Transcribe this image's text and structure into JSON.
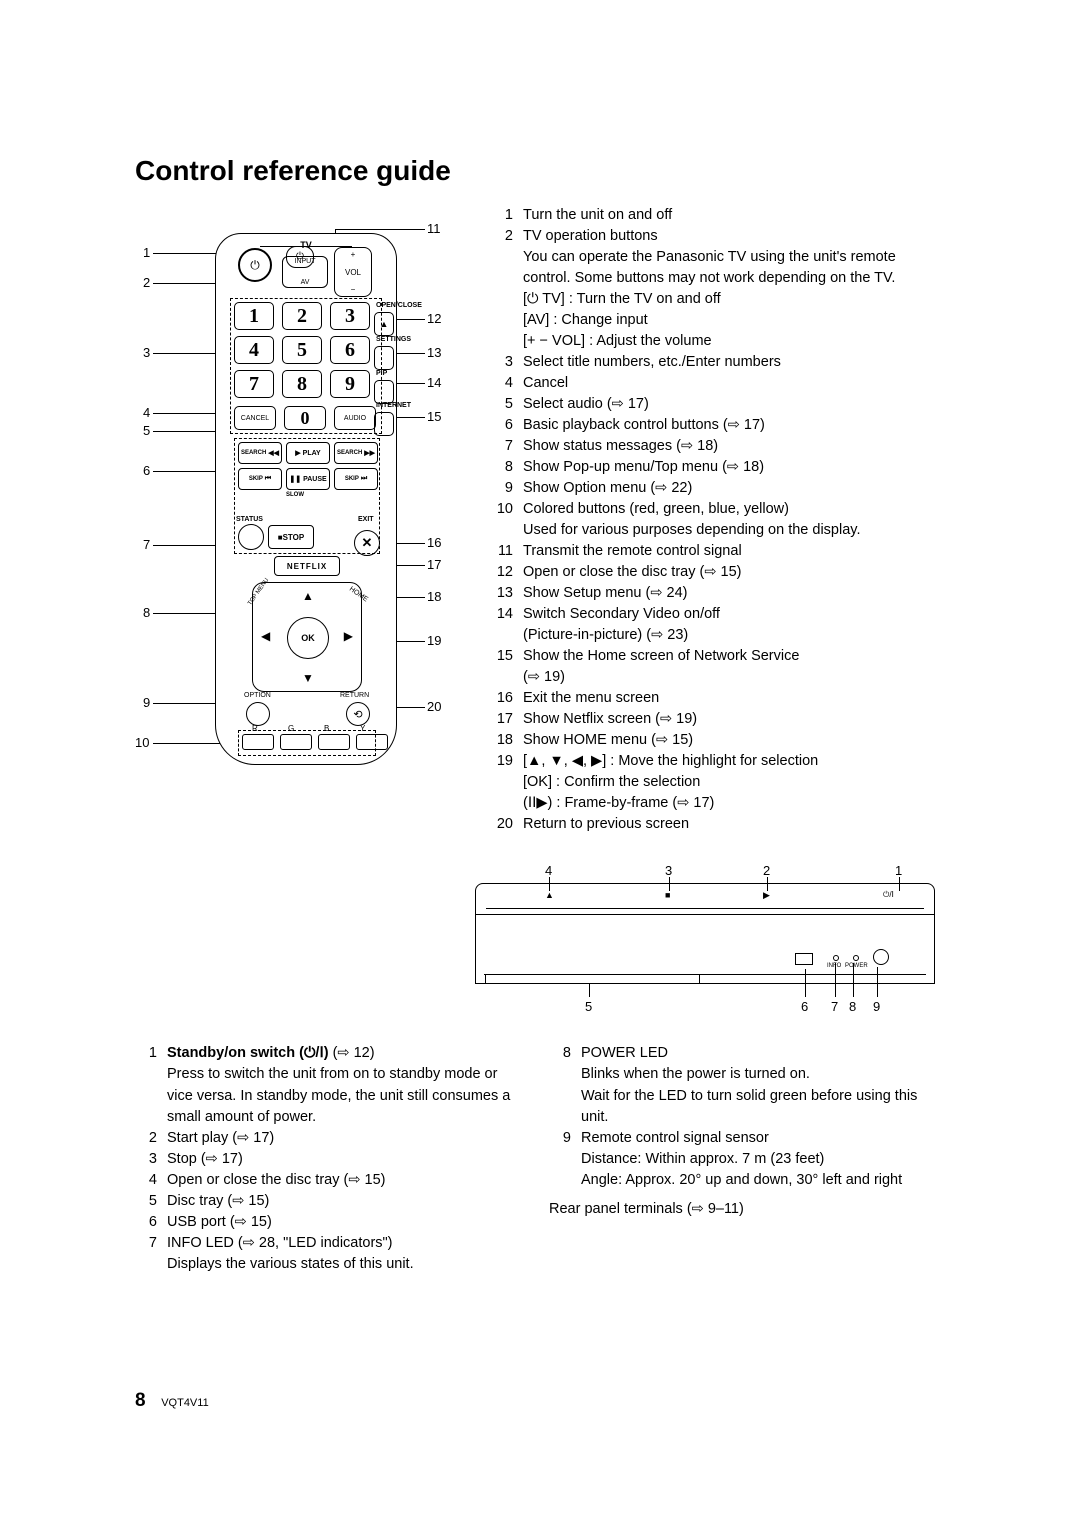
{
  "title": "Control reference guide",
  "page_number": "8",
  "doc_code": "VQT4V11",
  "remote_callouts_left": [
    "1",
    "2",
    "3",
    "4",
    "5",
    "6",
    "7",
    "8",
    "9",
    "10"
  ],
  "remote_callouts_right": [
    "11",
    "12",
    "13",
    "14",
    "15",
    "16",
    "17",
    "18",
    "19",
    "20"
  ],
  "remote": {
    "tv": "TV",
    "input": "INPUT",
    "av": "AV",
    "vol": "VOL",
    "nums": [
      "1",
      "2",
      "3",
      "4",
      "5",
      "6",
      "7",
      "8",
      "9"
    ],
    "num0": "0",
    "cancel": "CANCEL",
    "audio": "AUDIO",
    "open_close": "OPEN/CLOSE",
    "settings": "SETTINGS",
    "pip": "PIP",
    "internet": "INTERNET",
    "search": "SEARCH",
    "play": "PLAY",
    "skip": "SKIP",
    "slow": "SLOW",
    "pause": "PAUSE",
    "stop": "STOP",
    "status": "STATUS",
    "exit": "EXIT",
    "netflix": "NETFLIX",
    "ok": "OK",
    "option": "OPTION",
    "return": "RETURN",
    "home": "HOME",
    "popup": "POP-UP MENU",
    "topmenu": "TOP MENU",
    "colors": [
      "R",
      "G",
      "B",
      "Y"
    ]
  },
  "right_list": [
    {
      "n": "1",
      "t": "Turn the unit on and off"
    },
    {
      "n": "2",
      "t": "TV operation buttons"
    },
    {
      "n": "",
      "t": "You can operate the Panasonic TV using the unit's remote control. Some buttons may not work depending on the TV."
    },
    {
      "n": "",
      "t": "[⏻ TV] : Turn the TV on and off"
    },
    {
      "n": "",
      "t": "[AV]  : Change input"
    },
    {
      "n": "",
      "t": "[+ − VOL]  : Adjust the volume"
    },
    {
      "n": "3",
      "t": "Select title numbers, etc./Enter numbers"
    },
    {
      "n": "4",
      "t": "Cancel"
    },
    {
      "n": "5",
      "t": "Select audio (⇨ 17)"
    },
    {
      "n": "6",
      "t": "Basic playback control buttons (⇨ 17)"
    },
    {
      "n": "7",
      "t": "Show status messages (⇨ 18)"
    },
    {
      "n": "8",
      "t": "Show Pop-up menu/Top menu (⇨ 18)"
    },
    {
      "n": "9",
      "t": "Show Option menu (⇨ 22)"
    },
    {
      "n": "10",
      "t": "Colored buttons (red, green, blue, yellow)"
    },
    {
      "n": "",
      "t": "Used for various purposes depending on the display."
    },
    {
      "n": "11",
      "t": "Transmit the remote control signal"
    },
    {
      "n": "12",
      "t": "Open or close the disc tray (⇨ 15)"
    },
    {
      "n": "13",
      "t": "Show Setup menu (⇨ 24)"
    },
    {
      "n": "14",
      "t": "Switch Secondary Video on/off"
    },
    {
      "n": "",
      "t": "(Picture-in-picture) (⇨ 23)"
    },
    {
      "n": "15",
      "t": "Show the Home screen of Network Service"
    },
    {
      "n": "",
      "t": "(⇨ 19)"
    },
    {
      "n": "16",
      "t": "Exit the menu screen"
    },
    {
      "n": "17",
      "t": "Show Netflix screen (⇨ 19)"
    },
    {
      "n": "18",
      "t": "Show HOME menu (⇨ 15)"
    },
    {
      "n": "19",
      "t": "[▲, ▼, ◀, ▶] : Move the highlight for selection"
    },
    {
      "n": "",
      "t": "[OK] : Confirm the selection"
    },
    {
      "n": "",
      "t": "(ⅠⅠ▶) : Frame-by-frame (⇨ 17)"
    },
    {
      "n": "20",
      "t": "Return to previous screen"
    }
  ],
  "unit_top_nums": [
    "4",
    "3",
    "2",
    "1"
  ],
  "unit_bottom_nums_left": "5",
  "unit_bottom_nums_right": [
    "6",
    "7",
    "8",
    "9"
  ],
  "unit_icons": {
    "eject": "▲",
    "stop": "■",
    "play": "▶",
    "power": "⏻/Ⅰ"
  },
  "unit_labels": {
    "info": "INFO",
    "power": "POWER"
  },
  "lower_left": [
    {
      "n": "1",
      "b": "Standby/on switch (⏻/Ⅰ)",
      "t": " (⇨ 12)"
    },
    {
      "n": "",
      "t": "Press to switch the unit from on to standby mode or vice versa. In standby mode, the unit still consumes a small amount of power."
    },
    {
      "n": "2",
      "t": "Start play (⇨ 17)"
    },
    {
      "n": "3",
      "t": "Stop (⇨ 17)"
    },
    {
      "n": "4",
      "t": "Open or close the disc tray (⇨ 15)"
    },
    {
      "n": "5",
      "t": "Disc tray (⇨ 15)"
    },
    {
      "n": "6",
      "t": "USB port (⇨ 15)"
    },
    {
      "n": "7",
      "t": "INFO LED (⇨ 28, \"LED indicators\")"
    },
    {
      "n": "",
      "t": "Displays the various states of this unit."
    }
  ],
  "lower_right": [
    {
      "n": "8",
      "t": "POWER LED"
    },
    {
      "n": "",
      "t": "Blinks when the power is turned on."
    },
    {
      "n": "",
      "t": "Wait for the LED to turn solid green before using this unit."
    },
    {
      "n": "9",
      "t": "Remote control signal sensor"
    },
    {
      "n": "",
      "t": "Distance: Within approx. 7 m (23 feet)"
    },
    {
      "n": "",
      "t": "Angle: Approx. 20° up and down, 30° left and right"
    }
  ],
  "rear_text": "Rear panel terminals (⇨ 9–11)"
}
